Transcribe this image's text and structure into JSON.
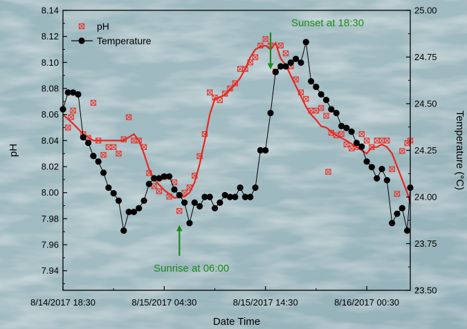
{
  "chart_data": {
    "type": "scatter",
    "xlabel": "Date Time",
    "ylabel": "pH",
    "y2label": "Temperature (°C)",
    "x_tick_labels": [
      "8/14/2017 18:30",
      "8/15/2017 04:30",
      "8/15/2017 14:30",
      "8/16/2017 00:30"
    ],
    "x_ticks_hours": [
      0,
      10,
      20,
      30
    ],
    "xlim_hours": [
      0,
      34.3
    ],
    "ylim": [
      7.925,
      8.14
    ],
    "y_ticks": [
      7.94,
      7.96,
      7.98,
      8.0,
      8.02,
      8.04,
      8.06,
      8.08,
      8.1,
      8.12,
      8.14
    ],
    "y2lim": [
      23.5,
      25.0
    ],
    "y2_ticks": [
      23.5,
      23.75,
      24.0,
      24.25,
      24.5,
      24.75,
      25.0
    ],
    "grid": false,
    "legend_position": "top-left",
    "colors": {
      "ph": "#e8322b",
      "ph_fit": "#e8261e",
      "temperature": "#000000",
      "annotation": "#1a8a1a"
    },
    "legend": {
      "ph": "pH",
      "temperature": "Temperature"
    },
    "annotations": [
      {
        "text": "Sunset at 18:30",
        "x": 20.5
      },
      {
        "text": "Sunrise at 06:00",
        "x": 11.5
      }
    ],
    "series": [
      {
        "name": "pH",
        "marker": "square-x",
        "points": [
          [
            0.5,
            8.05
          ],
          [
            1.0,
            8.063
          ],
          [
            2.0,
            8.045
          ],
          [
            2.5,
            8.042
          ],
          [
            3.0,
            8.069
          ],
          [
            3.5,
            8.04
          ],
          [
            4.0,
            8.029
          ],
          [
            4.5,
            8.035
          ],
          [
            5.0,
            8.035
          ],
          [
            5.5,
            8.03
          ],
          [
            6.0,
            8.041
          ],
          [
            6.5,
            8.058
          ],
          [
            7.0,
            8.04
          ],
          [
            7.5,
            8.04
          ],
          [
            8.0,
            8.035
          ],
          [
            8.5,
            8.015
          ],
          [
            9.0,
            8.005
          ],
          [
            9.5,
            8.001
          ],
          [
            10.0,
            8.012
          ],
          [
            10.5,
            7.997
          ],
          [
            11.0,
            8.008
          ],
          [
            11.5,
            7.986
          ],
          [
            12.0,
            8.0
          ],
          [
            12.5,
            8.004
          ],
          [
            13.0,
            8.013
          ],
          [
            13.5,
            8.028
          ],
          [
            14.0,
            8.045
          ],
          [
            14.5,
            8.077
          ],
          [
            15.0,
            8.073
          ],
          [
            15.5,
            8.071
          ],
          [
            16.0,
            8.076
          ],
          [
            16.5,
            8.08
          ],
          [
            17.0,
            8.084
          ],
          [
            17.5,
            8.095
          ],
          [
            18.0,
            8.095
          ],
          [
            18.5,
            8.1
          ],
          [
            19.0,
            8.104
          ],
          [
            19.5,
            8.113
          ],
          [
            20.0,
            8.118
          ],
          [
            20.5,
            8.113
          ],
          [
            21.0,
            8.093
          ],
          [
            21.5,
            8.113
          ],
          [
            22.0,
            8.107
          ],
          [
            22.5,
            8.097
          ],
          [
            23.0,
            8.087
          ],
          [
            23.5,
            8.077
          ],
          [
            24.0,
            8.072
          ],
          [
            24.5,
            8.063
          ],
          [
            25.0,
            8.063
          ],
          [
            25.5,
            8.065
          ],
          [
            26.0,
            8.059
          ],
          [
            26.5,
            8.046
          ],
          [
            27.0,
            8.044
          ],
          [
            27.5,
            8.045
          ],
          [
            28.0,
            8.037
          ],
          [
            28.5,
            8.034
          ],
          [
            29.0,
            8.035
          ],
          [
            29.5,
            8.045
          ],
          [
            30.0,
            8.04
          ],
          [
            30.5,
            8.035
          ],
          [
            31.0,
            8.04
          ],
          [
            31.5,
            8.04
          ],
          [
            32.0,
            8.04
          ],
          [
            32.5,
            8.018
          ],
          [
            33.0,
            7.999
          ],
          [
            33.5,
            8.032
          ],
          [
            34.0,
            8.038
          ],
          [
            34.3,
            8.04
          ],
          [
            26.2,
            8.016
          ],
          [
            0.8,
            8.058
          ]
        ]
      },
      {
        "name": "pH fit",
        "points": [
          [
            0.0,
            8.06
          ],
          [
            1.0,
            8.053
          ],
          [
            2.0,
            8.045
          ],
          [
            3.0,
            8.04
          ],
          [
            4.0,
            8.04
          ],
          [
            5.0,
            8.04
          ],
          [
            6.0,
            8.04
          ],
          [
            7.0,
            8.045
          ],
          [
            7.5,
            8.04
          ],
          [
            8.0,
            8.03
          ],
          [
            8.5,
            8.018
          ],
          [
            9.0,
            8.01
          ],
          [
            10.0,
            8.002
          ],
          [
            11.0,
            7.996
          ],
          [
            12.0,
            7.997
          ],
          [
            12.5,
            8.0
          ],
          [
            13.0,
            8.008
          ],
          [
            13.5,
            8.022
          ],
          [
            14.0,
            8.04
          ],
          [
            14.5,
            8.06
          ],
          [
            15.0,
            8.072
          ],
          [
            16.0,
            8.075
          ],
          [
            17.0,
            8.083
          ],
          [
            17.5,
            8.088
          ],
          [
            18.0,
            8.095
          ],
          [
            18.5,
            8.104
          ],
          [
            19.0,
            8.11
          ],
          [
            19.5,
            8.112
          ],
          [
            20.0,
            8.113
          ],
          [
            20.5,
            8.11
          ],
          [
            21.0,
            8.115
          ],
          [
            21.5,
            8.103
          ],
          [
            22.0,
            8.098
          ],
          [
            22.5,
            8.09
          ],
          [
            23.0,
            8.082
          ],
          [
            23.5,
            8.074
          ],
          [
            24.0,
            8.066
          ],
          [
            24.5,
            8.06
          ],
          [
            25.0,
            8.056
          ],
          [
            25.5,
            8.051
          ],
          [
            26.0,
            8.05
          ],
          [
            26.5,
            8.047
          ],
          [
            27.0,
            8.044
          ],
          [
            28.0,
            8.04
          ],
          [
            29.0,
            8.035
          ],
          [
            30.0,
            8.03
          ],
          [
            30.5,
            8.035
          ],
          [
            31.0,
            8.035
          ],
          [
            31.5,
            8.037
          ],
          [
            32.0,
            8.035
          ],
          [
            32.5,
            8.03
          ],
          [
            33.0,
            8.02
          ],
          [
            33.5,
            8.01
          ],
          [
            34.0,
            8.0
          ],
          [
            34.3,
            7.992
          ]
        ]
      },
      {
        "name": "Temperature",
        "marker": "circle",
        "axis": "right",
        "points": [
          [
            0.0,
            24.47
          ],
          [
            0.5,
            24.56
          ],
          [
            1.0,
            24.56
          ],
          [
            1.5,
            24.55
          ],
          [
            2.0,
            24.32
          ],
          [
            2.5,
            24.29
          ],
          [
            3.0,
            24.22
          ],
          [
            3.5,
            24.19
          ],
          [
            4.0,
            24.13
          ],
          [
            4.5,
            24.05
          ],
          [
            5.0,
            24.02
          ],
          [
            5.5,
            23.98
          ],
          [
            6.0,
            23.82
          ],
          [
            6.5,
            23.92
          ],
          [
            7.0,
            23.92
          ],
          [
            7.5,
            23.94
          ],
          [
            8.0,
            23.98
          ],
          [
            8.5,
            24.07
          ],
          [
            9.0,
            24.1
          ],
          [
            9.5,
            24.1
          ],
          [
            10.0,
            24.11
          ],
          [
            10.5,
            24.11
          ],
          [
            11.0,
            24.04
          ],
          [
            11.5,
            24.01
          ],
          [
            12.0,
            23.97
          ],
          [
            12.5,
            23.86
          ],
          [
            13.0,
            23.97
          ],
          [
            13.5,
            23.95
          ],
          [
            14.0,
            24.0
          ],
          [
            14.5,
            24.0
          ],
          [
            15.0,
            23.94
          ],
          [
            15.5,
            23.97
          ],
          [
            16.0,
            24.01
          ],
          [
            16.5,
            24.0
          ],
          [
            17.0,
            24.0
          ],
          [
            17.5,
            24.05
          ],
          [
            18.0,
            24.0
          ],
          [
            18.5,
            24.0
          ],
          [
            19.0,
            24.05
          ],
          [
            19.5,
            24.25
          ],
          [
            20.0,
            24.25
          ],
          [
            20.5,
            24.45
          ],
          [
            21.0,
            24.67
          ],
          [
            21.5,
            24.7
          ],
          [
            22.0,
            24.7
          ],
          [
            22.5,
            24.72
          ],
          [
            23.0,
            24.74
          ],
          [
            23.5,
            24.72
          ],
          [
            24.0,
            24.83
          ],
          [
            24.5,
            24.62
          ],
          [
            25.0,
            24.59
          ],
          [
            25.5,
            24.55
          ],
          [
            26.0,
            24.52
          ],
          [
            26.5,
            24.47
          ],
          [
            27.0,
            24.45
          ],
          [
            27.5,
            24.38
          ],
          [
            28.0,
            24.37
          ],
          [
            28.5,
            24.35
          ],
          [
            29.0,
            24.29
          ],
          [
            29.5,
            24.27
          ],
          [
            30.0,
            24.19
          ],
          [
            30.5,
            24.16
          ],
          [
            31.0,
            24.1
          ],
          [
            31.5,
            24.15
          ],
          [
            32.0,
            24.09
          ],
          [
            32.5,
            23.86
          ],
          [
            33.0,
            23.91
          ],
          [
            33.5,
            23.94
          ],
          [
            34.0,
            23.82
          ],
          [
            34.3,
            24.05
          ]
        ]
      }
    ]
  }
}
